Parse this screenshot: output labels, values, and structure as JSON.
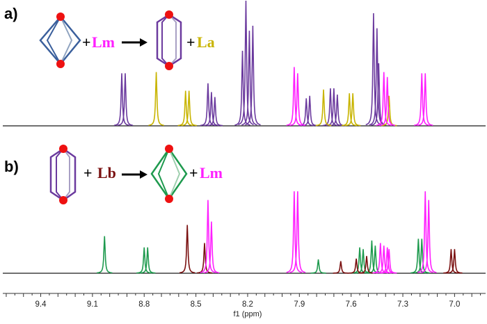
{
  "colors": {
    "baseline": "#1a1a1a",
    "Lm": "#ff1fff",
    "La": "#c8b400",
    "Lb": "#7a1010",
    "cage_a": "#6b3a9e",
    "cage_b": "#1e9a4e",
    "cage_blue": "#3a5f9c",
    "node": "#ee1111",
    "arrow": "#000000"
  },
  "panels": [
    {
      "label": "a)",
      "scheme": {
        "reactant_cage": "blue-diamond-cage",
        "added_ligand": "Lm",
        "product_cage": "purple-rectangular-cage",
        "released_ligand": "La",
        "plus": "+"
      }
    },
    {
      "label": "b)",
      "scheme": {
        "reactant_cage": "purple-rectangular-cage",
        "added_ligand": "Lb",
        "product_cage": "green-diamond-cage",
        "released_ligand": "Lm",
        "plus": "+"
      }
    }
  ],
  "chart_data": [
    {
      "type": "line",
      "panel": "a",
      "title": "",
      "xlabel": "f1 (ppm)",
      "xlim": [
        9.62,
        6.82
      ],
      "x_reversed": true,
      "ticks": [
        "9.4",
        "9.1",
        "8.8",
        "8.5",
        "8.2",
        "7.9",
        "7.6",
        "7.3",
        "7.0"
      ],
      "tick_values": [
        9.4,
        9.1,
        8.8,
        8.5,
        8.2,
        7.9,
        7.6,
        7.3,
        7.0
      ],
      "series": [
        {
          "color_key": "cage_a",
          "peaks": [
            [
              8.93,
              0.42
            ],
            [
              8.91,
              0.42
            ],
            [
              8.43,
              0.34
            ],
            [
              8.41,
              0.27
            ],
            [
              8.39,
              0.23
            ],
            [
              8.21,
              1.0
            ],
            [
              8.19,
              0.76
            ],
            [
              8.17,
              0.8
            ],
            [
              8.23,
              0.6
            ],
            [
              7.86,
              0.22
            ],
            [
              7.84,
              0.24
            ],
            [
              7.72,
              0.3
            ],
            [
              7.7,
              0.3
            ],
            [
              7.68,
              0.25
            ],
            [
              7.47,
              0.9
            ],
            [
              7.45,
              0.78
            ],
            [
              7.44,
              0.5
            ]
          ]
        },
        {
          "color_key": "La",
          "peaks": [
            [
              8.73,
              0.43
            ],
            [
              8.56,
              0.28
            ],
            [
              8.54,
              0.28
            ],
            [
              7.76,
              0.29
            ],
            [
              7.61,
              0.26
            ],
            [
              7.59,
              0.26
            ],
            [
              7.38,
              0.24
            ]
          ]
        },
        {
          "color_key": "Lm",
          "peaks": [
            [
              7.93,
              0.47
            ],
            [
              7.91,
              0.42
            ],
            [
              7.41,
              0.43
            ],
            [
              7.39,
              0.39
            ],
            [
              7.19,
              0.42
            ],
            [
              7.17,
              0.42
            ]
          ]
        }
      ]
    },
    {
      "type": "line",
      "panel": "b",
      "title": "",
      "xlabel": "f1 (ppm)",
      "xlim": [
        9.62,
        6.82
      ],
      "x_reversed": true,
      "ticks": [
        "9.4",
        "9.1",
        "8.8",
        "8.5",
        "8.2",
        "7.9",
        "7.6",
        "7.3",
        "7.0"
      ],
      "tick_values": [
        9.4,
        9.1,
        8.8,
        8.5,
        8.2,
        7.9,
        7.6,
        7.3,
        7.0
      ],
      "series": [
        {
          "color_key": "cage_b",
          "peaks": [
            [
              9.03,
              0.43
            ],
            [
              8.8,
              0.3
            ],
            [
              8.78,
              0.3
            ],
            [
              7.79,
              0.16
            ],
            [
              7.55,
              0.3
            ],
            [
              7.53,
              0.28
            ],
            [
              7.48,
              0.38
            ],
            [
              7.46,
              0.32
            ],
            [
              7.21,
              0.4
            ],
            [
              7.19,
              0.4
            ]
          ]
        },
        {
          "color_key": "Lb",
          "peaks": [
            [
              8.55,
              0.56
            ],
            [
              8.45,
              0.35
            ],
            [
              7.66,
              0.14
            ],
            [
              7.57,
              0.17
            ],
            [
              7.51,
              0.2
            ],
            [
              7.02,
              0.28
            ],
            [
              7.0,
              0.28
            ]
          ]
        },
        {
          "color_key": "Lm",
          "peaks": [
            [
              8.43,
              0.85
            ],
            [
              8.41,
              0.6
            ],
            [
              7.93,
              0.95
            ],
            [
              7.91,
              0.95
            ],
            [
              7.43,
              0.35
            ],
            [
              7.41,
              0.32
            ],
            [
              7.39,
              0.3
            ],
            [
              7.38,
              0.28
            ],
            [
              7.17,
              0.95
            ],
            [
              7.15,
              0.85
            ]
          ]
        }
      ]
    }
  ]
}
